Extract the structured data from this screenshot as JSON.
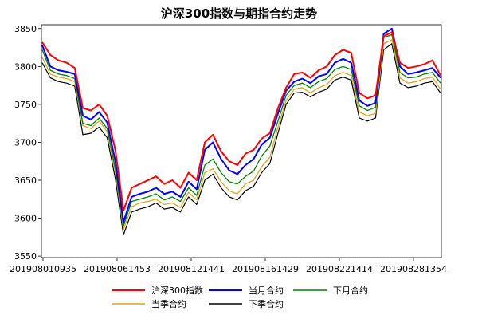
{
  "chart_data": {
    "type": "line",
    "title": "沪深300指数与期指合约走势",
    "xlabel": "",
    "ylabel": "",
    "ylim": [
      3548,
      3855
    ],
    "yticks": [
      3550,
      3600,
      3650,
      3700,
      3750,
      3800,
      3850
    ],
    "x_tick_labels": [
      "201908010935",
      "201908061453",
      "201908121441",
      "201908161429",
      "201908221414",
      "201908281354"
    ],
    "x": [
      "08-01 09:35",
      "08-01 11:30",
      "08-01 14:30",
      "08-02 10:30",
      "08-02 13:30",
      "08-05 09:45",
      "08-05 11:00",
      "08-05 14:00",
      "08-05 15:00",
      "08-06 09:35",
      "08-06 11:00",
      "08-06 14:30",
      "08-07 10:30",
      "08-07 14:00",
      "08-08 10:30",
      "08-08 14:00",
      "08-09 10:30",
      "08-09 14:00",
      "08-12 10:00",
      "08-12 14:41",
      "08-13 09:35",
      "08-13 10:30",
      "08-13 14:00",
      "08-14 10:30",
      "08-14 14:00",
      "08-15 10:30",
      "08-15 14:00",
      "08-16 10:30",
      "08-16 14:29",
      "08-19 10:00",
      "08-19 14:00",
      "08-20 10:30",
      "08-20 14:00",
      "08-21 10:30",
      "08-21 14:00",
      "08-22 10:30",
      "08-22 14:14",
      "08-23 10:30",
      "08-23 14:00",
      "08-26 09:35",
      "08-26 11:00",
      "08-26 14:00",
      "08-27 10:30",
      "08-27 14:00",
      "08-28 10:30",
      "08-28 13:54",
      "08-29 10:30",
      "08-29 14:00",
      "08-30 10:30",
      "08-30 15:00"
    ],
    "series": [
      {
        "name": "沪深300指数",
        "color": "#ff0000",
        "values": [
          3832,
          3815,
          3808,
          3805,
          3798,
          3745,
          3742,
          3750,
          3735,
          3690,
          3610,
          3640,
          3645,
          3650,
          3655,
          3645,
          3650,
          3640,
          3660,
          3650,
          3700,
          3710,
          3688,
          3675,
          3670,
          3685,
          3690,
          3705,
          3712,
          3745,
          3772,
          3790,
          3792,
          3785,
          3795,
          3800,
          3815,
          3822,
          3818,
          3765,
          3758,
          3762,
          3840,
          3845,
          3805,
          3798,
          3800,
          3803,
          3808,
          3788
        ]
      },
      {
        "name": "当月合约",
        "color": "#0000ff",
        "values": [
          3828,
          3800,
          3795,
          3793,
          3790,
          3735,
          3730,
          3740,
          3726,
          3675,
          3595,
          3628,
          3632,
          3635,
          3640,
          3632,
          3635,
          3628,
          3648,
          3638,
          3690,
          3700,
          3678,
          3663,
          3658,
          3670,
          3678,
          3697,
          3706,
          3738,
          3768,
          3780,
          3784,
          3778,
          3787,
          3790,
          3805,
          3810,
          3805,
          3755,
          3748,
          3752,
          3843,
          3850,
          3800,
          3790,
          3792,
          3795,
          3798,
          3785
        ]
      },
      {
        "name": "下月合约",
        "color": "#008000",
        "values": [
          3822,
          3795,
          3790,
          3788,
          3784,
          3725,
          3722,
          3732,
          3718,
          3665,
          3590,
          3622,
          3625,
          3628,
          3632,
          3624,
          3628,
          3622,
          3640,
          3630,
          3670,
          3678,
          3660,
          3648,
          3645,
          3655,
          3662,
          3682,
          3695,
          3728,
          3762,
          3775,
          3778,
          3772,
          3780,
          3784,
          3796,
          3800,
          3796,
          3748,
          3742,
          3746,
          3838,
          3842,
          3792,
          3785,
          3786,
          3790,
          3792,
          3778
        ]
      },
      {
        "name": "当季合约",
        "color": "#daa520",
        "values": [
          3812,
          3790,
          3786,
          3784,
          3780,
          3722,
          3718,
          3728,
          3714,
          3660,
          3585,
          3615,
          3620,
          3622,
          3625,
          3618,
          3620,
          3614,
          3634,
          3624,
          3660,
          3665,
          3648,
          3636,
          3632,
          3645,
          3650,
          3668,
          3680,
          3720,
          3755,
          3770,
          3772,
          3765,
          3772,
          3776,
          3788,
          3792,
          3788,
          3740,
          3735,
          3738,
          3830,
          3835,
          3785,
          3778,
          3780,
          3784,
          3786,
          3770
        ]
      },
      {
        "name": "下季合约",
        "color": "#000000",
        "values": [
          3805,
          3785,
          3780,
          3778,
          3774,
          3710,
          3712,
          3720,
          3706,
          3652,
          3578,
          3608,
          3612,
          3615,
          3620,
          3612,
          3614,
          3608,
          3628,
          3618,
          3650,
          3658,
          3640,
          3628,
          3624,
          3636,
          3642,
          3660,
          3672,
          3712,
          3750,
          3765,
          3766,
          3760,
          3766,
          3770,
          3782,
          3786,
          3782,
          3732,
          3728,
          3732,
          3822,
          3830,
          3778,
          3772,
          3774,
          3778,
          3780,
          3765
        ]
      }
    ],
    "grid": false,
    "legend_position": "bottom"
  }
}
